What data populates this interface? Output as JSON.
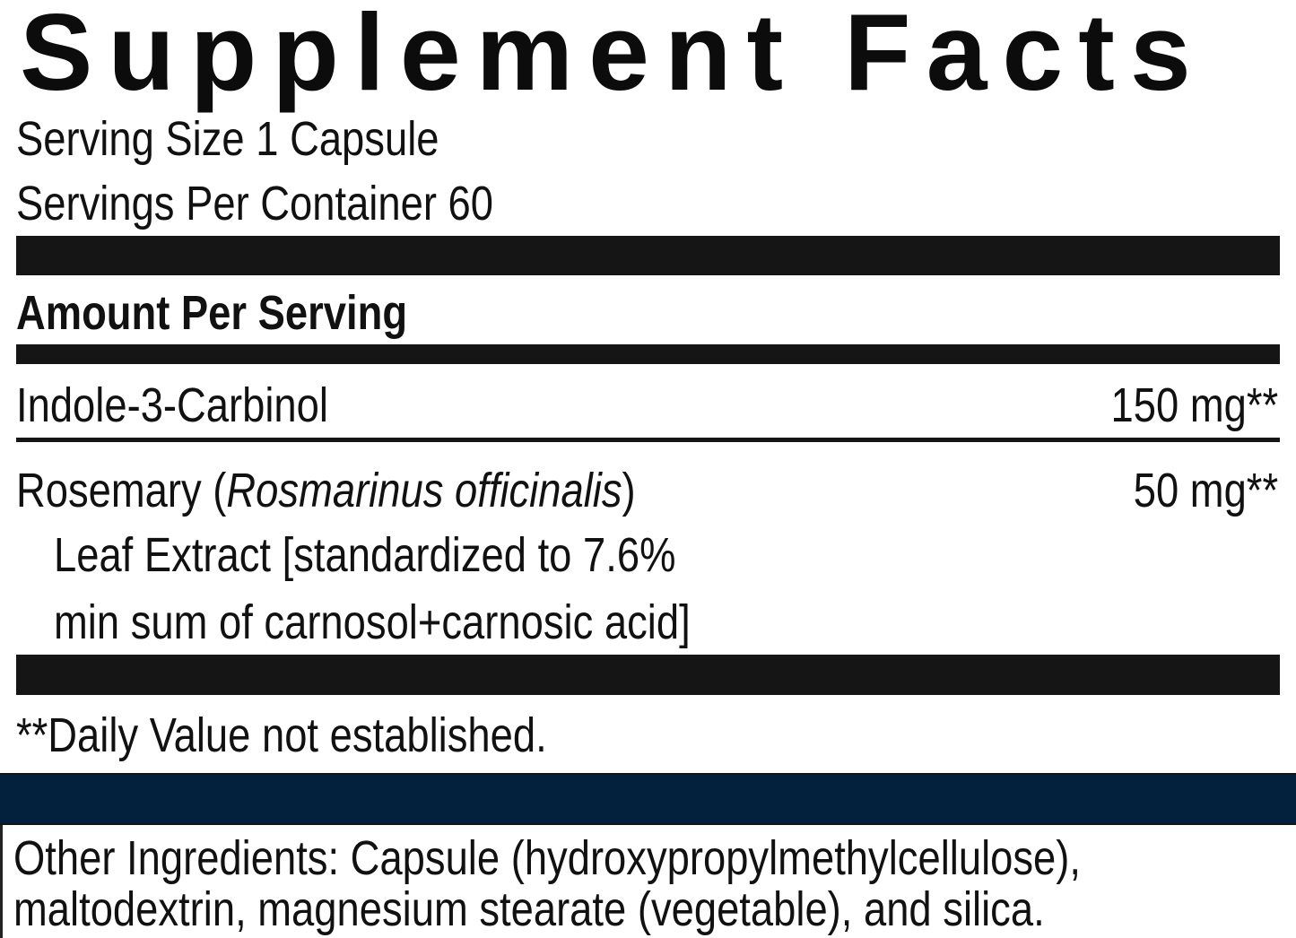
{
  "title": "Supplement Facts",
  "serving_size": "Serving Size 1 Capsule",
  "servings_per_container": "Servings Per Container 60",
  "amount_header": "Amount Per Serving",
  "ingredients": [
    {
      "name": "Indole-3-Carbinol",
      "amount": "150 mg**"
    },
    {
      "name_prefix": "Rosemary (",
      "name_italic": "Rosmarinus officinalis",
      "name_suffix": ")",
      "amount": "50 mg**",
      "detail_lines": [
        "Leaf Extract [standardized to 7.6%",
        "min sum of carnosol+carnosic acid]"
      ]
    }
  ],
  "footnote": "**Daily Value not established.",
  "other_ingredients": [
    "Other Ingredients: Capsule (hydroxypropylmethylcellulose),",
    "maltodextrin, magnesium stearate (vegetable), and silica."
  ],
  "colors": {
    "rule": "#151515",
    "accent_bar": "#03203c"
  }
}
